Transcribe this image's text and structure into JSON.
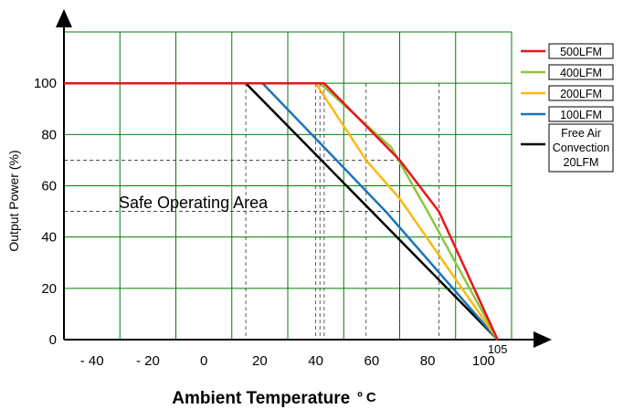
{
  "chart_data": {
    "type": "line",
    "xlabel": "Ambient Temperature",
    "xlabel_unit": "º C",
    "ylabel": "Output Power (%)",
    "xlim": [
      -50,
      110
    ],
    "ylim": [
      0,
      120
    ],
    "x_ticks": [
      {
        "value": -40,
        "label": "- 40"
      },
      {
        "value": -20,
        "label": "- 20"
      },
      {
        "value": 0,
        "label": "0"
      },
      {
        "value": 20,
        "label": "20"
      },
      {
        "value": 40,
        "label": "40"
      },
      {
        "value": 60,
        "label": "60"
      },
      {
        "value": 80,
        "label": "80"
      },
      {
        "value": 100,
        "label": "100"
      }
    ],
    "y_ticks": [
      {
        "value": 0,
        "label": "0"
      },
      {
        "value": 20,
        "label": "20"
      },
      {
        "value": 40,
        "label": "40"
      },
      {
        "value": 60,
        "label": "60"
      },
      {
        "value": 80,
        "label": "80"
      },
      {
        "value": 100,
        "label": "100"
      }
    ],
    "grid": true,
    "grid_color": "#008000",
    "annotations": [
      {
        "text": "Safe Operating Area",
        "x": -5,
        "y": 50
      },
      {
        "text": "105",
        "x": 105,
        "y": 0
      }
    ],
    "guides": {
      "h": [
        70,
        50
      ],
      "v": [
        15,
        40,
        41.5,
        43,
        58,
        70,
        84
      ]
    },
    "series": [
      {
        "name": "500LFM",
        "color": "#e8141c",
        "points": [
          [
            -50,
            100
          ],
          [
            43,
            100
          ],
          [
            70,
            70
          ],
          [
            84,
            50
          ],
          [
            105,
            0
          ]
        ]
      },
      {
        "name": "400LFM",
        "color": "#8cc63f",
        "points": [
          [
            -50,
            100
          ],
          [
            41.5,
            100
          ],
          [
            67,
            75
          ],
          [
            80,
            50
          ],
          [
            105,
            0
          ]
        ]
      },
      {
        "name": "200LFM",
        "color": "#fcb913",
        "points": [
          [
            -50,
            100
          ],
          [
            40,
            100
          ],
          [
            58,
            70
          ],
          [
            70,
            55
          ],
          [
            105,
            0
          ]
        ]
      },
      {
        "name": "100LFM",
        "color": "#1a75bc",
        "points": [
          [
            -50,
            100
          ],
          [
            21,
            100
          ],
          [
            65,
            50
          ],
          [
            105,
            0
          ]
        ]
      },
      {
        "name": "Free Air Convection 20LFM",
        "legend_lines": [
          "Free Air",
          "Convection",
          "20LFM"
        ],
        "color": "#000000",
        "points": [
          [
            -50,
            100
          ],
          [
            15,
            100
          ],
          [
            105,
            0
          ]
        ]
      }
    ],
    "legend_position": "right"
  }
}
